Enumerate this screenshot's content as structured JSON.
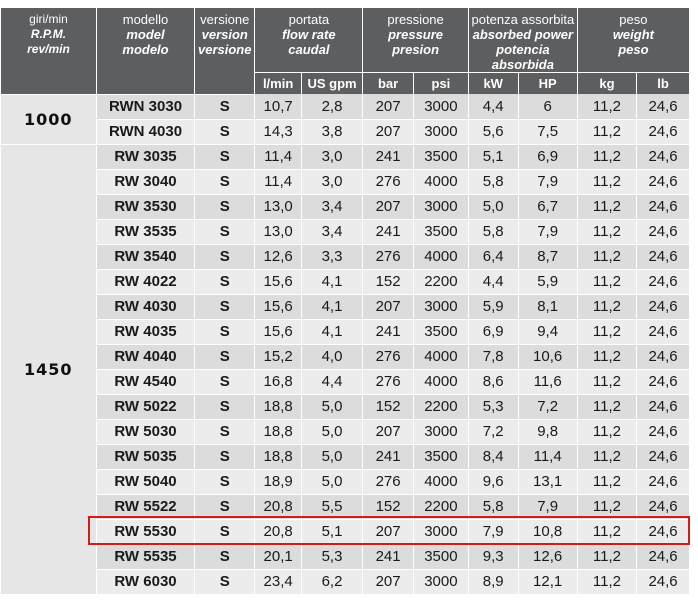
{
  "header": {
    "rpm": {
      "it": "giri/min",
      "en": "R.P.M.",
      "es": "rev/min"
    },
    "model": {
      "it": "modello",
      "en": "model",
      "es": "modelo"
    },
    "version": {
      "it": "versione",
      "en": "version",
      "es": "versione"
    },
    "flow": {
      "it": "portata",
      "en": "flow rate",
      "es": "caudal",
      "unit1": "l/min",
      "unit2": "US gpm"
    },
    "pressure": {
      "it": "pressione",
      "en": "pressure",
      "es": "presion",
      "unit1": "bar",
      "unit2": "psi"
    },
    "power": {
      "it": "potenza assorbita",
      "en": "absorbed power",
      "es": "potencia absorbida",
      "unit1": "kW",
      "unit2": "HP"
    },
    "weight": {
      "it": "peso",
      "en": "weight",
      "es": "peso",
      "unit1": "kg",
      "unit2": "lb"
    }
  },
  "groups": [
    {
      "rpm": "1000",
      "rows": [
        [
          "RWN 3030",
          "S",
          "10,7",
          "2,8",
          "207",
          "3000",
          "4,4",
          "6",
          "11,2",
          "24,6"
        ],
        [
          "RWN 4030",
          "S",
          "14,3",
          "3,8",
          "207",
          "3000",
          "5,6",
          "7,5",
          "11,2",
          "24,6"
        ]
      ]
    },
    {
      "rpm": "1450",
      "rows": [
        [
          "RW 3035",
          "S",
          "11,4",
          "3,0",
          "241",
          "3500",
          "5,1",
          "6,9",
          "11,2",
          "24,6"
        ],
        [
          "RW 3040",
          "S",
          "11,4",
          "3,0",
          "276",
          "4000",
          "5,8",
          "7,9",
          "11,2",
          "24,6"
        ],
        [
          "RW 3530",
          "S",
          "13,0",
          "3,4",
          "207",
          "3000",
          "5,0",
          "6,7",
          "11,2",
          "24,6"
        ],
        [
          "RW 3535",
          "S",
          "13,0",
          "3,4",
          "241",
          "3500",
          "5,8",
          "7,9",
          "11,2",
          "24,6"
        ],
        [
          "RW 3540",
          "S",
          "12,6",
          "3,3",
          "276",
          "4000",
          "6,4",
          "8,7",
          "11,2",
          "24,6"
        ],
        [
          "RW 4022",
          "S",
          "15,6",
          "4,1",
          "152",
          "2200",
          "4,4",
          "5,9",
          "11,2",
          "24,6"
        ],
        [
          "RW 4030",
          "S",
          "15,6",
          "4,1",
          "207",
          "3000",
          "5,9",
          "8,1",
          "11,2",
          "24,6"
        ],
        [
          "RW 4035",
          "S",
          "15,6",
          "4,1",
          "241",
          "3500",
          "6,9",
          "9,4",
          "11,2",
          "24,6"
        ],
        [
          "RW 4040",
          "S",
          "15,2",
          "4,0",
          "276",
          "4000",
          "7,8",
          "10,6",
          "11,2",
          "24,6"
        ],
        [
          "RW 4540",
          "S",
          "16,8",
          "4,4",
          "276",
          "4000",
          "8,6",
          "11,6",
          "11,2",
          "24,6"
        ],
        [
          "RW 5022",
          "S",
          "18,8",
          "5,0",
          "152",
          "2200",
          "5,3",
          "7,2",
          "11,2",
          "24,6"
        ],
        [
          "RW 5030",
          "S",
          "18,8",
          "5,0",
          "207",
          "3000",
          "7,2",
          "9,8",
          "11,2",
          "24,6"
        ],
        [
          "RW 5035",
          "S",
          "18,8",
          "5,0",
          "241",
          "3500",
          "8,4",
          "11,4",
          "11,2",
          "24,6"
        ],
        [
          "RW 5040",
          "S",
          "18,9",
          "5,0",
          "276",
          "4000",
          "9,6",
          "13,1",
          "11,2",
          "24,6"
        ],
        [
          "RW 5522",
          "S",
          "20,8",
          "5,5",
          "152",
          "2200",
          "5,8",
          "7,9",
          "11,2",
          "24,6"
        ],
        [
          "RW 5530",
          "S",
          "20,8",
          "5,1",
          "207",
          "3000",
          "7,9",
          "10,8",
          "11,2",
          "24,6"
        ],
        [
          "RW 5535",
          "S",
          "20,1",
          "5,3",
          "241",
          "3500",
          "9,3",
          "12,6",
          "11,2",
          "24,6"
        ],
        [
          "RW 6030",
          "S",
          "23,4",
          "6,2",
          "207",
          "3000",
          "8,9",
          "12,1",
          "11,2",
          "24,6"
        ]
      ]
    }
  ],
  "highlight": {
    "model": "RW 5530",
    "color": "#d21c1c"
  }
}
